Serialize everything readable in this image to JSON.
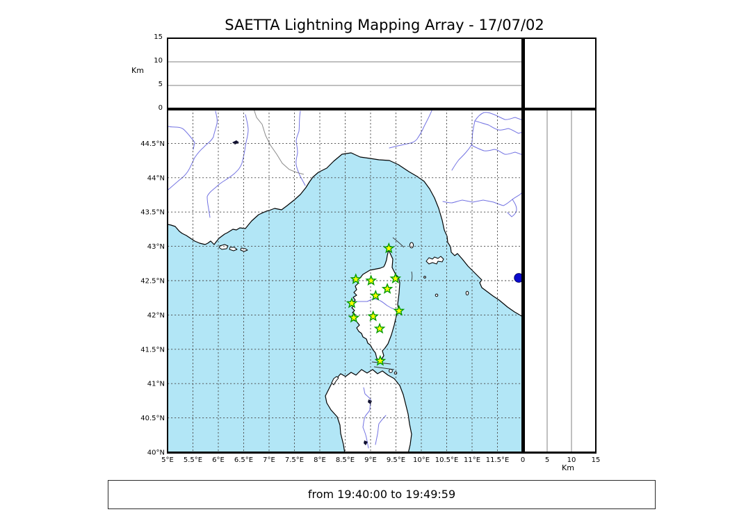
{
  "title": "SAETTA Lightning Mapping Array - 17/07/02",
  "footer": "from 19:40:00 to 19:49:59",
  "altitude_axis": {
    "label": "Km",
    "ticks": [
      0,
      5,
      10,
      15
    ],
    "gridlines": [
      5,
      10
    ],
    "max_km": 15
  },
  "map_axes": {
    "lon_min": 5,
    "lon_max": 12,
    "lat_min": 40,
    "lat_max": 45,
    "lon_ticks": [
      {
        "value": 5,
        "label": "5°E"
      },
      {
        "value": 5.5,
        "label": "5.5°E"
      },
      {
        "value": 6,
        "label": "6°E"
      },
      {
        "value": 6.5,
        "label": "6.5°E"
      },
      {
        "value": 7,
        "label": "7°E"
      },
      {
        "value": 7.5,
        "label": "7.5°E"
      },
      {
        "value": 8,
        "label": "8°E"
      },
      {
        "value": 8.5,
        "label": "8.5°E"
      },
      {
        "value": 9,
        "label": "9°E"
      },
      {
        "value": 9.5,
        "label": "9.5°E"
      },
      {
        "value": 10,
        "label": "10°E"
      },
      {
        "value": 10.5,
        "label": "10.5°E"
      },
      {
        "value": 11,
        "label": "11°E"
      },
      {
        "value": 11.5,
        "label": "11.5°E"
      }
    ],
    "lat_ticks": [
      {
        "value": 44.5,
        "label": "44.5°N"
      },
      {
        "value": 44,
        "label": "44°N"
      },
      {
        "value": 43.5,
        "label": "43.5°N"
      },
      {
        "value": 43,
        "label": "43°N"
      },
      {
        "value": 42.5,
        "label": "42.5°N"
      },
      {
        "value": 42,
        "label": "42°N"
      },
      {
        "value": 41.5,
        "label": "41.5°N"
      },
      {
        "value": 41,
        "label": "41°N"
      },
      {
        "value": 40.5,
        "label": "40.5°N"
      },
      {
        "value": 40,
        "label": "40°N"
      }
    ]
  },
  "stations": [
    {
      "lon": 9.36,
      "lat": 42.97
    },
    {
      "lon": 8.71,
      "lat": 42.52
    },
    {
      "lon": 9.01,
      "lat": 42.5
    },
    {
      "lon": 9.49,
      "lat": 42.53
    },
    {
      "lon": 9.33,
      "lat": 42.38
    },
    {
      "lon": 9.1,
      "lat": 42.28
    },
    {
      "lon": 8.63,
      "lat": 42.17
    },
    {
      "lon": 9.56,
      "lat": 42.06
    },
    {
      "lon": 8.67,
      "lat": 41.96
    },
    {
      "lon": 9.05,
      "lat": 41.98
    },
    {
      "lon": 9.18,
      "lat": 41.8
    },
    {
      "lon": 9.19,
      "lat": 41.33
    }
  ],
  "event_dot": {
    "lon": 11.92,
    "lat": 42.54,
    "altitude_km": 0
  },
  "colors": {
    "sea": "#b2e6f6",
    "land": "#ffffff",
    "coast": "#000000",
    "river": "#7272e2",
    "country_border": "#8a8a8a",
    "map_grid": "#4a4a4a",
    "panel_grid": "#808080",
    "station_fill": "#ffff00",
    "station_stroke": "#009a00",
    "event": "#0a0acc"
  },
  "chart_data": {
    "type": "map",
    "title": "SAETTA Lightning Mapping Array - 17/07/02",
    "time_window": "from 19:40:00 to 19:49:59",
    "panels": [
      {
        "name": "altitude-vs-longitude",
        "x_range": [
          5,
          12
        ],
        "x_unit": "°E",
        "y_range": [
          0,
          15
        ],
        "y_unit": "Km",
        "points": []
      },
      {
        "name": "geographic-map",
        "lon_range": [
          5,
          12
        ],
        "lat_range": [
          40,
          45
        ],
        "grid_step_deg": 0.5,
        "station_marker": "green-yellow-star",
        "station_count": 12,
        "events": [
          {
            "lon": 11.92,
            "lat": 42.54,
            "color": "#0a0acc"
          }
        ]
      },
      {
        "name": "altitude-vs-latitude",
        "x_range": [
          0,
          15
        ],
        "x_unit": "Km",
        "lat_range": [
          40,
          45
        ],
        "points": []
      }
    ],
    "legend_position": "none",
    "grid": true
  }
}
